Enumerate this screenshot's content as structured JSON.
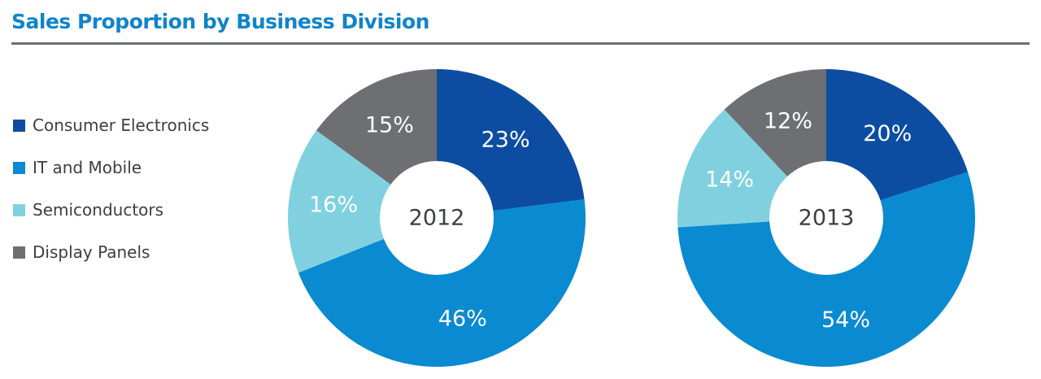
{
  "title": "Sales Proportion by Business Division",
  "legend": [
    {
      "label": "Consumer Electronics",
      "color": "#0c4da2"
    },
    {
      "label": "IT and Mobile",
      "color": "#0a8ad0"
    },
    {
      "label": "Semiconductors",
      "color": "#80d0e0"
    },
    {
      "label": "Display Panels",
      "color": "#6e6f72"
    }
  ],
  "chart_data": [
    {
      "type": "pie",
      "center_label": "2012",
      "categories": [
        "Consumer Electronics",
        "IT and Mobile",
        "Semiconductors",
        "Display Panels"
      ],
      "values": [
        23,
        46,
        16,
        15
      ],
      "labels": [
        "23%",
        "46%",
        "16%",
        "15%"
      ],
      "colors": [
        "#0c4da2",
        "#0a8ad0",
        "#80d0e0",
        "#6e6f72"
      ]
    },
    {
      "type": "pie",
      "center_label": "2013",
      "categories": [
        "Consumer Electronics",
        "IT and Mobile",
        "Semiconductors",
        "Display Panels"
      ],
      "values": [
        20,
        54,
        14,
        12
      ],
      "labels": [
        "20%",
        "54%",
        "14%",
        "12%"
      ],
      "colors": [
        "#0c4da2",
        "#0a8ad0",
        "#80d0e0",
        "#6e6f72"
      ]
    }
  ]
}
